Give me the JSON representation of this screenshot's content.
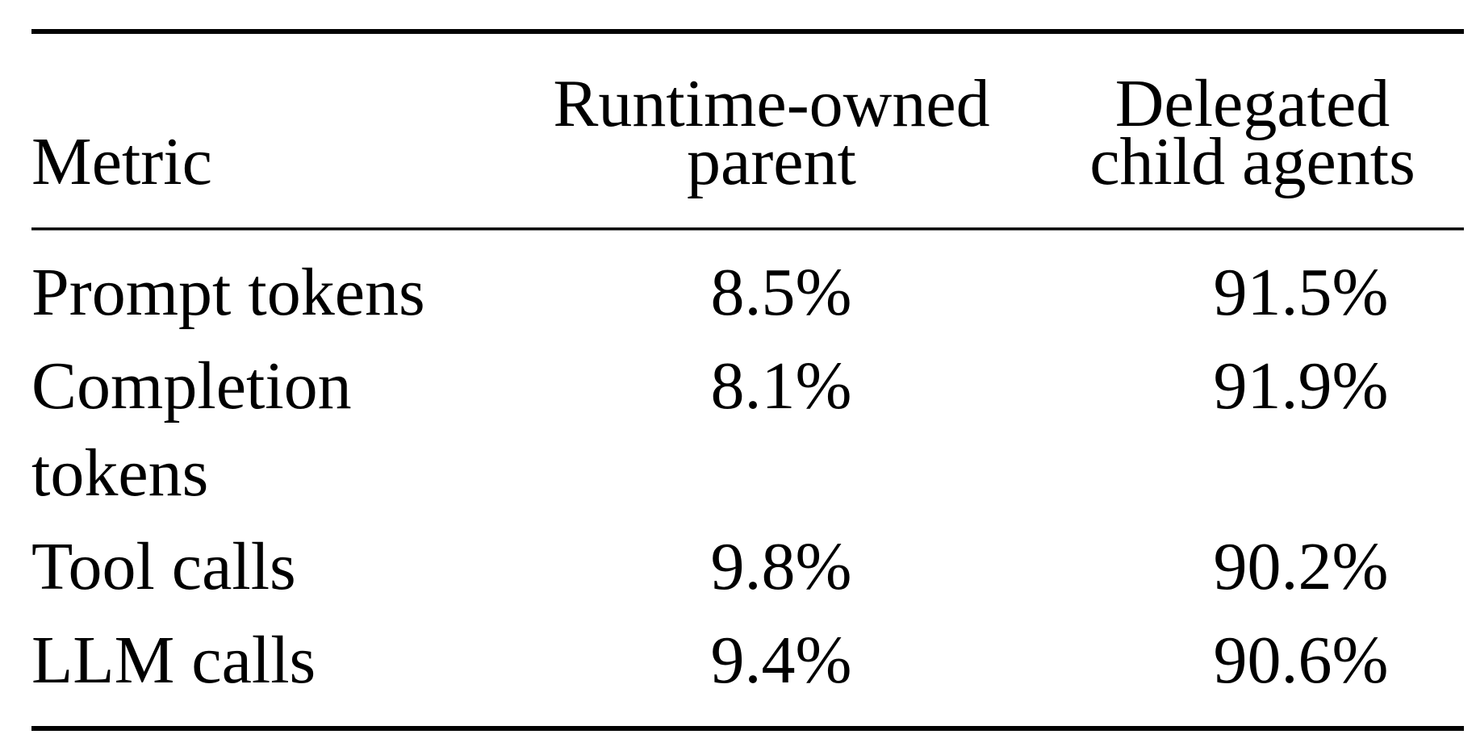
{
  "table": {
    "header": [
      [
        "Metric"
      ],
      [
        "Runtime-owned",
        "parent"
      ],
      [
        "Delegated",
        "child agents"
      ]
    ],
    "rows": [
      [
        [
          "Prompt tokens"
        ],
        "8.5%",
        "91.5%"
      ],
      [
        [
          "Completion",
          "tokens"
        ],
        "8.1%",
        "91.9%"
      ],
      [
        [
          "Tool calls"
        ],
        "9.8%",
        "90.2%"
      ],
      [
        [
          "LLM calls"
        ],
        "9.4%",
        "90.6%"
      ]
    ]
  }
}
